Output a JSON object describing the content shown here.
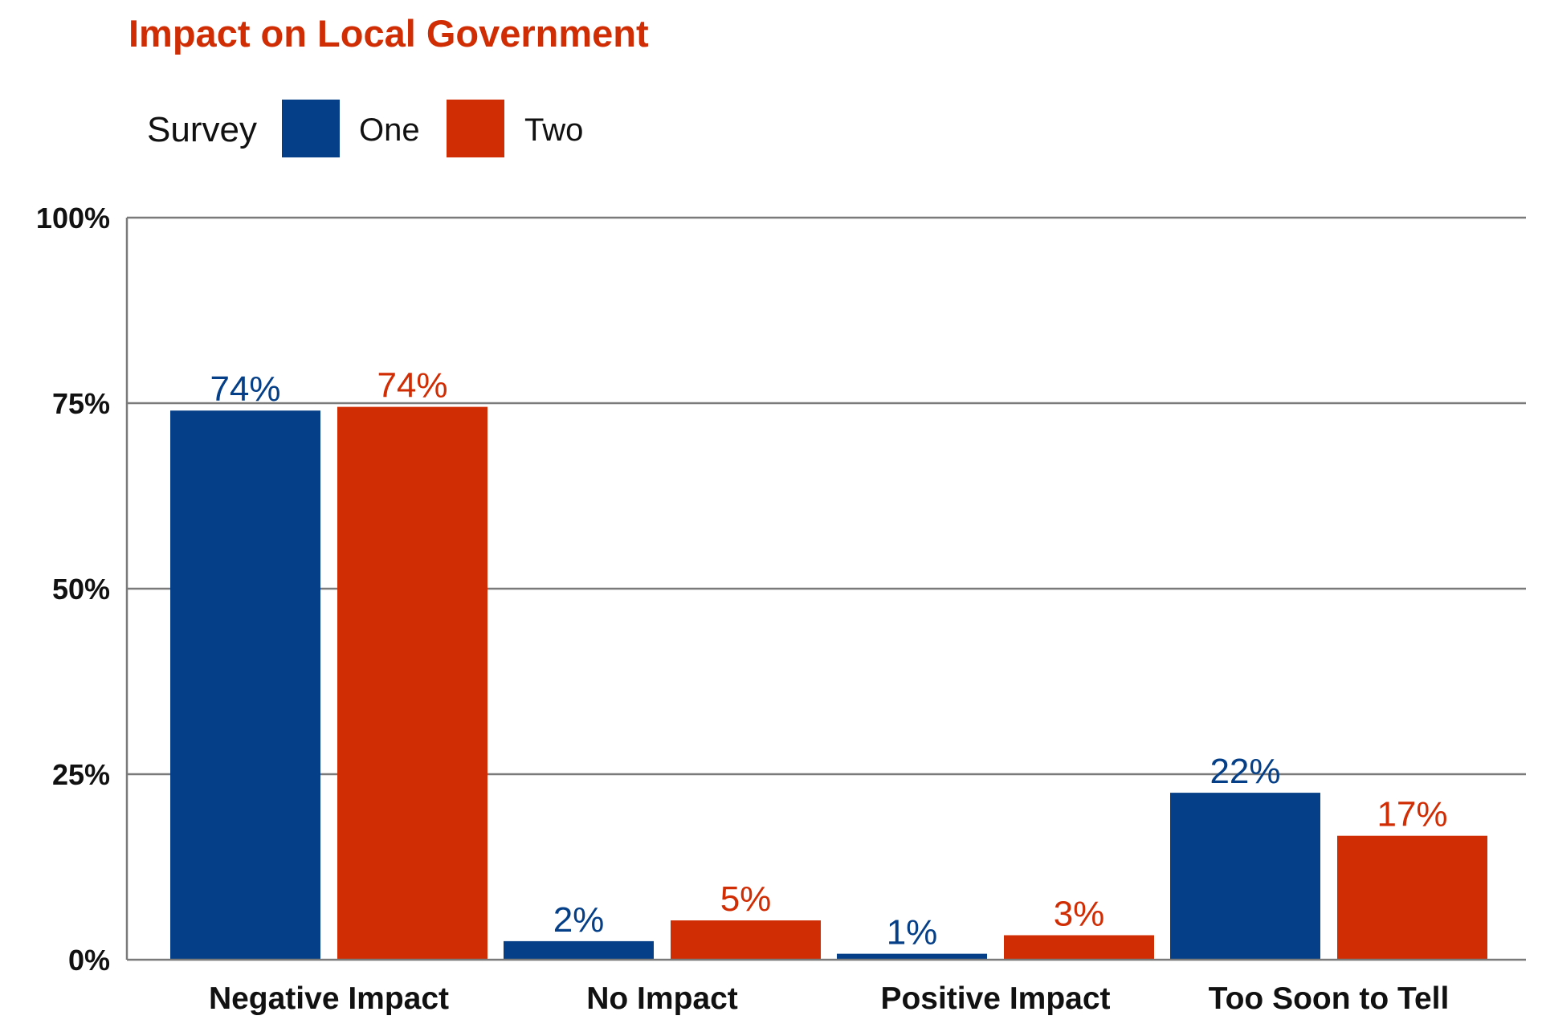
{
  "colors": {
    "series_one": "#043f87",
    "series_two": "#d12d04",
    "title": "#d12d04",
    "gridline": "#7a7a7a",
    "axis_text": "#111111"
  },
  "chart_data": {
    "type": "bar",
    "title": "Impact on Local Government",
    "legend_title": "Survey",
    "legend_position": "top-left",
    "categories": [
      "Negative Impact",
      "No Impact",
      "Positive Impact",
      "Too Soon to Tell"
    ],
    "series": [
      {
        "name": "One",
        "values": [
          74,
          2.5,
          0.8,
          22.5
        ],
        "labels": [
          "74%",
          "2%",
          "1%",
          "22%"
        ]
      },
      {
        "name": "Two",
        "values": [
          74.5,
          5.3,
          3.3,
          16.7
        ],
        "labels": [
          "74%",
          "5%",
          "3%",
          "17%"
        ]
      }
    ],
    "y_ticks": [
      0,
      25,
      50,
      75,
      100
    ],
    "y_tick_labels": [
      "0%",
      "25%",
      "50%",
      "75%",
      "100%"
    ],
    "ylim": [
      0,
      100
    ],
    "xlabel": "",
    "ylabel": "",
    "grid": true
  }
}
